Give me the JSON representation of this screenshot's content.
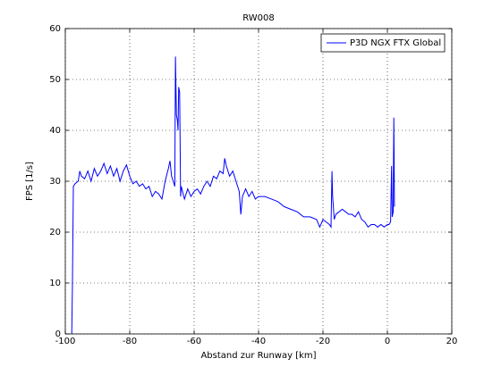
{
  "chart_data": {
    "type": "line",
    "title": "RW008",
    "x_label": "Abstand zur Runway [km]",
    "y_label": "FPS [1/s]",
    "xlim": [
      -100,
      20
    ],
    "ylim": [
      0,
      60
    ],
    "xticks": [
      -100,
      -80,
      -60,
      -40,
      -20,
      0,
      20
    ],
    "yticks": [
      0,
      10,
      20,
      30,
      40,
      50,
      60
    ],
    "grid": true,
    "legend": "top-right",
    "x": [
      -98.0,
      -97.8,
      -97.5,
      -97,
      -96,
      -95.5,
      -95,
      -94,
      -93,
      -92,
      -91,
      -90,
      -89,
      -88,
      -87,
      -86,
      -85,
      -84,
      -83,
      -82,
      -81,
      -80,
      -79,
      -78,
      -77,
      -76,
      -75,
      -74,
      -73,
      -72,
      -71,
      -70,
      -69,
      -68,
      -67.5,
      -67,
      -66.5,
      -66,
      -65.8,
      -65.5,
      -65.2,
      -65,
      -64.8,
      -64.5,
      -64.2,
      -64,
      -63,
      -62,
      -61,
      -60,
      -59,
      -58,
      -57,
      -56,
      -55,
      -54,
      -53,
      -52,
      -51,
      -50.5,
      -50,
      -49,
      -48,
      -47,
      -46,
      -45.5,
      -45,
      -44,
      -43,
      -42,
      -41,
      -40,
      -38,
      -36,
      -34,
      -32,
      -30,
      -28,
      -26,
      -24,
      -22,
      -21,
      -20,
      -19,
      -18,
      -17.5,
      -17.2,
      -17,
      -16.5,
      -16,
      -15,
      -14,
      -13,
      -12,
      -11,
      -10,
      -9,
      -8,
      -7,
      -6,
      -5,
      -4,
      -3,
      -2,
      -1,
      0,
      0.5,
      1,
      1.3,
      1.5,
      1.8,
      2,
      2.2
    ],
    "series": [
      {
        "name": "P3D NGX FTX Global",
        "color": "#0000ff",
        "values": [
          0,
          9,
          29,
          29.5,
          30,
          32,
          31,
          30.5,
          32,
          30,
          32.5,
          31,
          32,
          33.5,
          31.5,
          33,
          31,
          32.5,
          30,
          32,
          33.2,
          31,
          29.5,
          30,
          29,
          29.5,
          28.5,
          29,
          27,
          28,
          27.5,
          26.5,
          30,
          32.5,
          34,
          31,
          30,
          29,
          54.5,
          43,
          42,
          40,
          48.5,
          47.5,
          27,
          29,
          26.5,
          28.5,
          27,
          28,
          28.5,
          27.5,
          29,
          30,
          29,
          31,
          30.5,
          32,
          31.5,
          34.5,
          33,
          31,
          32,
          30,
          28,
          23.5,
          27,
          28.5,
          27,
          28,
          26.5,
          27,
          27,
          26.5,
          26,
          25,
          24.5,
          24,
          23,
          23,
          22.5,
          21,
          22.5,
          22,
          21.5,
          21,
          32,
          27,
          22.5,
          23.5,
          24,
          24.5,
          24,
          23.5,
          23.5,
          23,
          24,
          22.5,
          22,
          21,
          21.5,
          21.5,
          21,
          21.5,
          21,
          21.5,
          21.5,
          22,
          33,
          23,
          24,
          42.5,
          25
        ]
      }
    ]
  }
}
